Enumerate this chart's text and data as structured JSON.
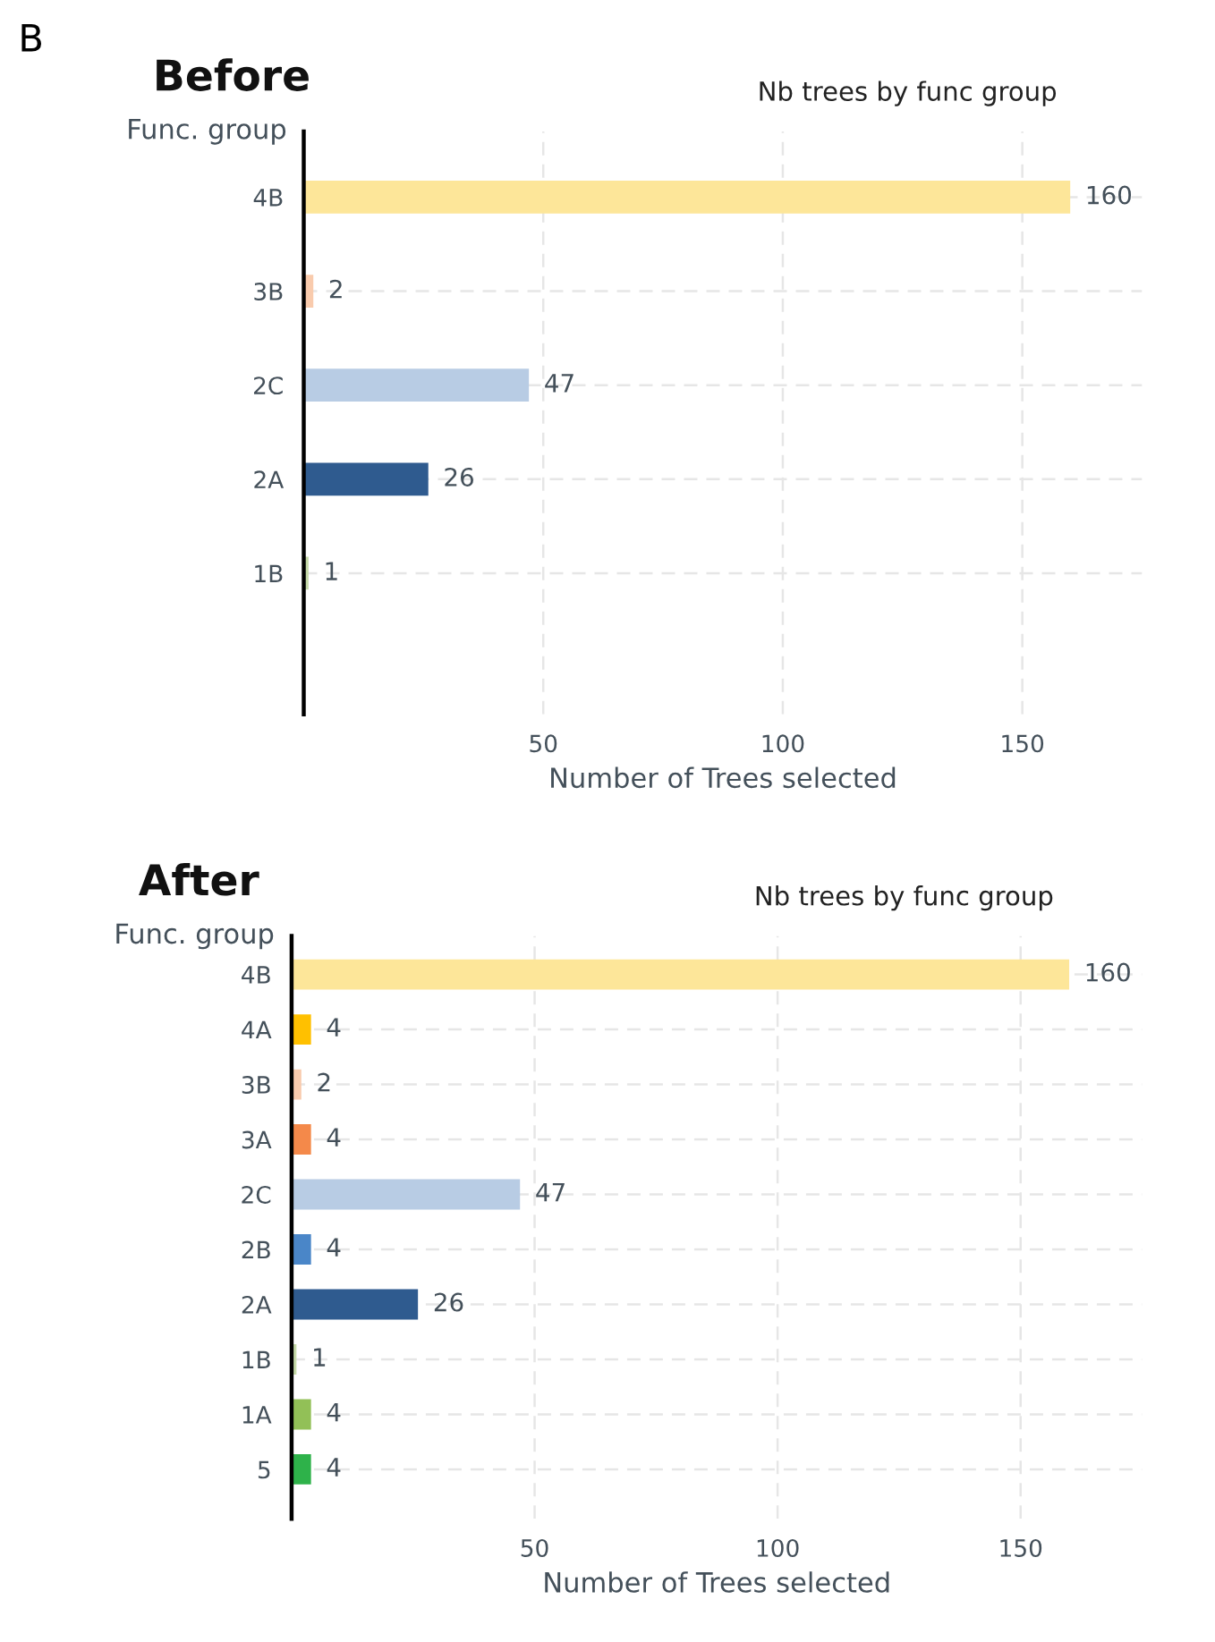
{
  "chart_data": [
    {
      "type": "bar",
      "orientation": "horizontal",
      "title": "Before",
      "subtitle": "Nb trees by func group",
      "ylabel": "Func. group",
      "xlabel": "Number of Trees selected",
      "annotations": [
        "B"
      ],
      "categories": [
        "4B",
        "3B",
        "2C",
        "2A",
        "1B"
      ],
      "values": [
        160,
        2,
        47,
        26,
        1
      ],
      "colors": [
        "#fde699",
        "#f9cbad",
        "#b8cce4",
        "#2f5b8f",
        "#c5d9a8"
      ],
      "xlim": [
        0,
        175
      ],
      "xticks": [
        50,
        100,
        150
      ],
      "grid": true,
      "data_labels": true
    },
    {
      "type": "bar",
      "orientation": "horizontal",
      "title": "After",
      "subtitle": "Nb trees by func group",
      "ylabel": "Func. group",
      "xlabel": "Number of Trees selected",
      "categories": [
        "4B",
        "4A",
        "3B",
        "3A",
        "2C",
        "2B",
        "2A",
        "1B",
        "1A",
        "5"
      ],
      "values": [
        160,
        4,
        2,
        4,
        47,
        4,
        26,
        1,
        4,
        4
      ],
      "colors": [
        "#fde699",
        "#ffc000",
        "#f9cbad",
        "#f4894a",
        "#b8cce4",
        "#4a86c8",
        "#2f5b8f",
        "#c5d9a8",
        "#92c057",
        "#2eb24a"
      ],
      "xlim": [
        0,
        175
      ],
      "xticks": [
        50,
        100,
        150
      ],
      "grid": true,
      "data_labels": true
    }
  ]
}
